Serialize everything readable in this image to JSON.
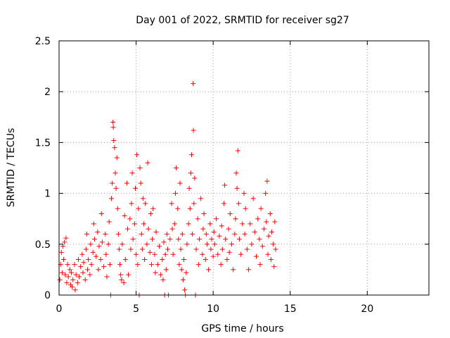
{
  "chart_data": {
    "type": "scatter",
    "title": "Day 001 of 2022, SRMTID for receiver sg27",
    "xlabel": "GPS time / hours",
    "ylabel": "SRMTID / TECUs",
    "xlim": [
      0,
      24
    ],
    "ylim": [
      0,
      2.5
    ],
    "x_ticks": [
      0,
      5,
      10,
      15,
      20
    ],
    "x_tick_labels": [
      "0",
      "5",
      "10",
      "15",
      "20"
    ],
    "y_ticks": [
      0,
      0.5,
      1,
      1.5,
      2,
      2.5
    ],
    "y_tick_labels": [
      "0",
      "0.5",
      "1",
      "1.5",
      "2",
      "2.5"
    ],
    "grid": true,
    "marker": "+",
    "colors": {
      "points": "#ff0000",
      "grid": "#a0a0a0",
      "axis": "#000000"
    },
    "series": [
      {
        "name": "SRMTID",
        "points": [
          [
            0.05,
            0.15
          ],
          [
            0.1,
            0.3
          ],
          [
            0.15,
            0.42
          ],
          [
            0.2,
            0.22
          ],
          [
            0.25,
            0.48
          ],
          [
            0.3,
            0.35
          ],
          [
            0.35,
            0.52
          ],
          [
            0.4,
            0.2
          ],
          [
            0.45,
            0.56
          ],
          [
            0.5,
            0.12
          ],
          [
            0.55,
            0.3
          ],
          [
            0.6,
            0.18
          ],
          [
            0.7,
            0.25
          ],
          [
            0.75,
            0.1
          ],
          [
            0.8,
            0.22
          ],
          [
            0.85,
            0.08
          ],
          [
            0.9,
            0.15
          ],
          [
            1.0,
            0.3
          ],
          [
            1.05,
            0.05
          ],
          [
            1.1,
            0.2
          ],
          [
            1.2,
            0.12
          ],
          [
            1.25,
            0.35
          ],
          [
            1.3,
            0.18
          ],
          [
            1.4,
            0.28
          ],
          [
            1.5,
            0.4
          ],
          [
            1.55,
            0.22
          ],
          [
            1.6,
            0.32
          ],
          [
            1.7,
            0.15
          ],
          [
            1.75,
            0.45
          ],
          [
            1.8,
            0.6
          ],
          [
            1.85,
            0.25
          ],
          [
            1.9,
            0.35
          ],
          [
            2.0,
            0.2
          ],
          [
            2.05,
            0.5
          ],
          [
            2.1,
            0.3
          ],
          [
            2.2,
            0.42
          ],
          [
            2.25,
            0.7
          ],
          [
            2.3,
            0.55
          ],
          [
            2.4,
            0.38
          ],
          [
            2.5,
            0.62
          ],
          [
            2.55,
            0.25
          ],
          [
            2.6,
            0.48
          ],
          [
            2.7,
            0.35
          ],
          [
            2.75,
            0.8
          ],
          [
            2.8,
            0.52
          ],
          [
            2.9,
            0.28
          ],
          [
            3.0,
            0.6
          ],
          [
            3.05,
            0.4
          ],
          [
            3.1,
            0.18
          ],
          [
            3.2,
            0.5
          ],
          [
            3.25,
            0.72
          ],
          [
            3.3,
            0.3
          ],
          [
            3.35,
            0.0
          ],
          [
            3.4,
            0.95
          ],
          [
            3.45,
            1.1
          ],
          [
            3.5,
            1.7
          ],
          [
            3.52,
            1.65
          ],
          [
            3.55,
            1.52
          ],
          [
            3.6,
            1.45
          ],
          [
            3.65,
            1.2
          ],
          [
            3.7,
            1.05
          ],
          [
            3.75,
            1.35
          ],
          [
            3.8,
            0.85
          ],
          [
            3.85,
            0.6
          ],
          [
            3.9,
            0.45
          ],
          [
            3.95,
            0.3
          ],
          [
            4.0,
            0.2
          ],
          [
            4.05,
            0.15
          ],
          [
            4.1,
            0.5
          ],
          [
            4.2,
            0.12
          ],
          [
            4.25,
            0.78
          ],
          [
            4.3,
            0.35
          ],
          [
            4.4,
            1.1
          ],
          [
            4.45,
            0.65
          ],
          [
            4.5,
            0.2
          ],
          [
            4.6,
            0.75
          ],
          [
            4.65,
            0.45
          ],
          [
            4.7,
            0.9
          ],
          [
            4.75,
            1.2
          ],
          [
            4.8,
            0.55
          ],
          [
            4.9,
            0.7
          ],
          [
            4.95,
            1.05
          ],
          [
            5.0,
            0.4
          ],
          [
            5.05,
            1.38
          ],
          [
            5.1,
            0.3
          ],
          [
            5.15,
            0.85
          ],
          [
            5.2,
            0.0
          ],
          [
            5.25,
            1.25
          ],
          [
            5.3,
            1.1
          ],
          [
            5.35,
            0.6
          ],
          [
            5.4,
            0.45
          ],
          [
            5.45,
            0.95
          ],
          [
            5.5,
            0.7
          ],
          [
            5.55,
            0.35
          ],
          [
            5.6,
            0.9
          ],
          [
            5.7,
            0.5
          ],
          [
            5.75,
            1.3
          ],
          [
            5.8,
            0.65
          ],
          [
            5.9,
            0.42
          ],
          [
            5.95,
            0.8
          ],
          [
            6.0,
            0.3
          ],
          [
            6.05,
            0.55
          ],
          [
            6.1,
            0.85
          ],
          [
            6.2,
            0.4
          ],
          [
            6.25,
            0.22
          ],
          [
            6.3,
            0.62
          ],
          [
            6.4,
            0.3
          ],
          [
            6.5,
            0.48
          ],
          [
            6.6,
            0.2
          ],
          [
            6.7,
            0.35
          ],
          [
            6.75,
            0.15
          ],
          [
            6.8,
            0.52
          ],
          [
            6.85,
            0.0
          ],
          [
            6.9,
            0.4
          ],
          [
            6.95,
            0.25
          ],
          [
            7.0,
            0.6
          ],
          [
            7.05,
            0.45
          ],
          [
            7.1,
            0.0
          ],
          [
            7.2,
            0.55
          ],
          [
            7.3,
            0.9
          ],
          [
            7.35,
            0.65
          ],
          [
            7.4,
            0.4
          ],
          [
            7.5,
            0.7
          ],
          [
            7.55,
            1.0
          ],
          [
            7.6,
            1.25
          ],
          [
            7.7,
            0.85
          ],
          [
            7.75,
            0.55
          ],
          [
            7.8,
            0.3
          ],
          [
            7.85,
            1.1
          ],
          [
            7.9,
            0.45
          ],
          [
            7.95,
            0.25
          ],
          [
            8.0,
            0.6
          ],
          [
            8.05,
            0.15
          ],
          [
            8.1,
            0.35
          ],
          [
            8.15,
            0.05
          ],
          [
            8.2,
            0.0
          ],
          [
            8.25,
            0.22
          ],
          [
            8.3,
            0.5
          ],
          [
            8.4,
            0.7
          ],
          [
            8.45,
            1.05
          ],
          [
            8.5,
            0.85
          ],
          [
            8.55,
            1.2
          ],
          [
            8.6,
            1.38
          ],
          [
            8.65,
            0.6
          ],
          [
            8.7,
            2.08
          ],
          [
            8.72,
            1.62
          ],
          [
            8.75,
            0.9
          ],
          [
            8.8,
            1.15
          ],
          [
            8.85,
            0.0
          ],
          [
            8.9,
            0.45
          ],
          [
            9.0,
            0.75
          ],
          [
            9.05,
            0.3
          ],
          [
            9.1,
            0.55
          ],
          [
            9.2,
            0.95
          ],
          [
            9.3,
            0.4
          ],
          [
            9.35,
            0.65
          ],
          [
            9.4,
            0.8
          ],
          [
            9.5,
            0.35
          ],
          [
            9.55,
            0.6
          ],
          [
            9.6,
            0.5
          ],
          [
            9.7,
            0.25
          ],
          [
            9.8,
            0.7
          ],
          [
            9.85,
            0.45
          ],
          [
            9.9,
            0.55
          ],
          [
            10.0,
            0.38
          ],
          [
            10.05,
            0.62
          ],
          [
            10.1,
            0.5
          ],
          [
            10.2,
            0.75
          ],
          [
            10.3,
            0.4
          ],
          [
            10.4,
            0.58
          ],
          [
            10.5,
            0.3
          ],
          [
            10.55,
            0.68
          ],
          [
            10.6,
            0.45
          ],
          [
            10.7,
            0.9
          ],
          [
            10.75,
            1.08
          ],
          [
            10.8,
            0.55
          ],
          [
            10.9,
            0.35
          ],
          [
            11.0,
            0.65
          ],
          [
            11.05,
            0.42
          ],
          [
            11.1,
            0.8
          ],
          [
            11.2,
            0.5
          ],
          [
            11.3,
            0.25
          ],
          [
            11.4,
            0.6
          ],
          [
            11.45,
            0.75
          ],
          [
            11.5,
            1.2
          ],
          [
            11.55,
            1.05
          ],
          [
            11.6,
            1.42
          ],
          [
            11.65,
            0.9
          ],
          [
            11.7,
            0.55
          ],
          [
            11.8,
            0.4
          ],
          [
            11.9,
            0.7
          ],
          [
            12.0,
            1.0
          ],
          [
            12.05,
            0.6
          ],
          [
            12.1,
            0.85
          ],
          [
            12.2,
            0.45
          ],
          [
            12.3,
            0.25
          ],
          [
            12.4,
            0.7
          ],
          [
            12.5,
            0.5
          ],
          [
            12.6,
            0.95
          ],
          [
            12.7,
            0.62
          ],
          [
            12.8,
            0.38
          ],
          [
            12.9,
            0.75
          ],
          [
            13.0,
            0.55
          ],
          [
            13.05,
            0.3
          ],
          [
            13.1,
            0.85
          ],
          [
            13.2,
            0.48
          ],
          [
            13.3,
            0.65
          ],
          [
            13.4,
            1.0
          ],
          [
            13.45,
            0.72
          ],
          [
            13.5,
            1.12
          ],
          [
            13.55,
            0.4
          ],
          [
            13.6,
            0.58
          ],
          [
            13.7,
            0.8
          ],
          [
            13.75,
            0.35
          ],
          [
            13.8,
            0.62
          ],
          [
            13.9,
            0.5
          ],
          [
            13.95,
            0.28
          ],
          [
            14.0,
            0.72
          ],
          [
            14.05,
            0.45
          ]
        ]
      }
    ]
  }
}
